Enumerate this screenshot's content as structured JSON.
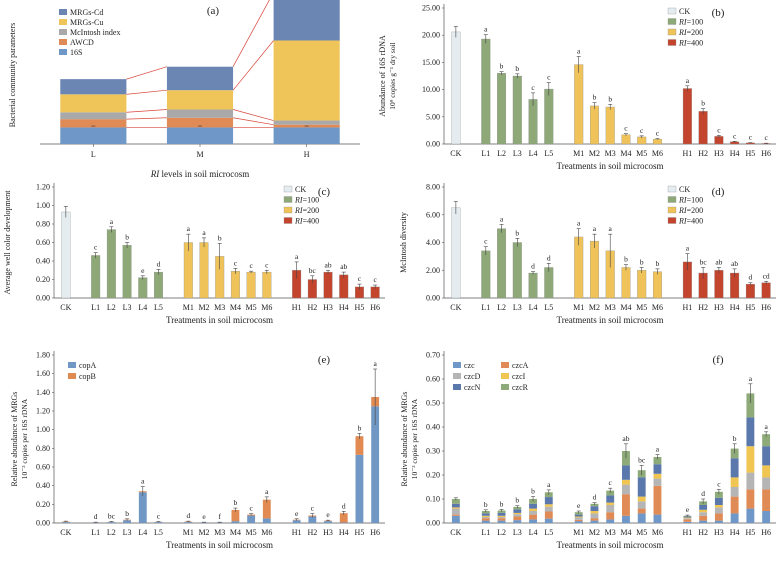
{
  "colors": {
    "ck": "#e4ecf0",
    "ri100": "#8ea878",
    "ri200": "#efc35a",
    "ri400": "#c4452e",
    "mrgs_cd": "#6c86b4",
    "mrgs_cu": "#efc55a",
    "mcintosh": "#a9a9a9",
    "awcd": "#e08a55",
    "s16": "#6f97c8",
    "copA": "#7197c4",
    "copB": "#e18a52",
    "czc": "#6f97c8",
    "czcA": "#e08a55",
    "czcD": "#b5b5b5",
    "czcI": "#f0c552",
    "czcN": "#5b78ad",
    "czcR": "#8eaa78"
  },
  "chart_data": [
    {
      "id": "a",
      "panel_label": "(a)",
      "type": "bar",
      "stacked": true,
      "ylabel": "Bacterial community parameters",
      "xlabel": "RI levels in soil microcosm",
      "categories": [
        "L",
        "M",
        "H"
      ],
      "legend": [
        "MRGs-Cd",
        "MRGs-Cu",
        "McIntosh index",
        "AWCD",
        "16S"
      ],
      "series": [
        {
          "name": "16S",
          "values": [
            0.12,
            0.12,
            0.12
          ]
        },
        {
          "name": "AWCD",
          "values": [
            0.06,
            0.07,
            0.02
          ]
        },
        {
          "name": "McIntosh index",
          "values": [
            0.05,
            0.06,
            0.03
          ]
        },
        {
          "name": "MRGs-Cu",
          "values": [
            0.13,
            0.14,
            0.58
          ]
        },
        {
          "name": "MRGs-Cd",
          "values": [
            0.11,
            0.17,
            0.35
          ]
        }
      ]
    },
    {
      "id": "b",
      "panel_label": "(b)",
      "type": "bar",
      "ylabel_line1": "Abundance of 16S rDNA",
      "ylabel_line2": "10⁹ copies g⁻¹ dry soil",
      "xlabel": "Treatments in soil microcosm",
      "yticks": [
        "0.00",
        "5.00",
        "10.00",
        "15.00",
        "20.00",
        "25.00"
      ],
      "ylim": [
        0,
        25
      ],
      "legend": [
        "CK",
        "RI=100",
        "RI=200",
        "RI=400"
      ],
      "groups": [
        {
          "series": "CK",
          "labels": [
            "CK"
          ],
          "values": [
            20.6
          ],
          "errors": [
            1.0
          ],
          "letters": [
            ""
          ]
        },
        {
          "series": "RI=100",
          "labels": [
            "L1",
            "L2",
            "L3",
            "L4",
            "L5"
          ],
          "values": [
            19.3,
            13.0,
            12.5,
            8.2,
            10.1
          ],
          "errors": [
            0.8,
            0.3,
            0.4,
            1.2,
            1.2
          ],
          "letters": [
            "a",
            "b",
            "b",
            "c",
            "c"
          ]
        },
        {
          "series": "RI=200",
          "labels": [
            "M1",
            "M2",
            "M3",
            "M4",
            "M5",
            "M6"
          ],
          "values": [
            14.6,
            7.0,
            6.8,
            1.7,
            1.3,
            0.9
          ],
          "errors": [
            1.5,
            0.6,
            0.5,
            0.2,
            0.2,
            0.1
          ],
          "letters": [
            "a",
            "b",
            "b",
            "c",
            "c",
            "c"
          ]
        },
        {
          "series": "RI=400",
          "labels": [
            "H1",
            "H2",
            "H3",
            "H4",
            "H5",
            "H6"
          ],
          "values": [
            10.2,
            6.0,
            1.4,
            0.4,
            0.2,
            0.1
          ],
          "errors": [
            0.5,
            0.5,
            0.2,
            0.1,
            0.05,
            0.05
          ],
          "letters": [
            "a",
            "b",
            "c",
            "c",
            "c",
            "c"
          ]
        }
      ]
    },
    {
      "id": "c",
      "panel_label": "(c)",
      "type": "bar",
      "ylabel": "Average well color development",
      "xlabel": "Treatments in soil microcosm",
      "yticks": [
        "0.00",
        "0.20",
        "0.40",
        "0.60",
        "0.80",
        "1.00",
        "1.20"
      ],
      "ylim": [
        0,
        1.2
      ],
      "legend": [
        "CK",
        "RI=100",
        "RI=200",
        "RI=400"
      ],
      "groups": [
        {
          "series": "CK",
          "labels": [
            "CK"
          ],
          "values": [
            0.93
          ],
          "errors": [
            0.06
          ],
          "letters": [
            ""
          ]
        },
        {
          "series": "RI=100",
          "labels": [
            "L1",
            "L2",
            "L3",
            "L4",
            "L5"
          ],
          "values": [
            0.46,
            0.74,
            0.57,
            0.22,
            0.28
          ],
          "errors": [
            0.03,
            0.03,
            0.03,
            0.02,
            0.03
          ],
          "letters": [
            "c",
            "a",
            "b",
            "e",
            "d"
          ]
        },
        {
          "series": "RI=200",
          "labels": [
            "M1",
            "M2",
            "M3",
            "M4",
            "M5",
            "M6"
          ],
          "values": [
            0.6,
            0.6,
            0.45,
            0.29,
            0.28,
            0.28
          ],
          "errors": [
            0.09,
            0.05,
            0.14,
            0.03,
            0.01,
            0.02
          ],
          "letters": [
            "a",
            "a",
            "b",
            "c",
            "c",
            "c"
          ]
        },
        {
          "series": "RI=400",
          "labels": [
            "H1",
            "H2",
            "H3",
            "H4",
            "H5",
            "H6"
          ],
          "values": [
            0.3,
            0.2,
            0.28,
            0.25,
            0.12,
            0.12
          ],
          "errors": [
            0.09,
            0.04,
            0.02,
            0.03,
            0.03,
            0.02
          ],
          "letters": [
            "a",
            "bc",
            "ab",
            "ab",
            "c",
            "c"
          ]
        }
      ]
    },
    {
      "id": "d",
      "panel_label": "(d)",
      "type": "bar",
      "ylabel": "McIntosh diversity",
      "xlabel": "Treatments in soil microcosm",
      "yticks": [
        "0.00",
        "2.00",
        "4.00",
        "6.00",
        "8.00"
      ],
      "ylim": [
        0,
        8
      ],
      "legend": [
        "CK",
        "RI=100",
        "RI=200",
        "RI=400"
      ],
      "groups": [
        {
          "series": "CK",
          "labels": [
            "CK"
          ],
          "values": [
            6.5
          ],
          "errors": [
            0.45
          ],
          "letters": [
            ""
          ]
        },
        {
          "series": "RI=100",
          "labels": [
            "L1",
            "L2",
            "L3",
            "L4",
            "L5"
          ],
          "values": [
            3.4,
            5.0,
            4.0,
            1.8,
            2.2
          ],
          "errors": [
            0.3,
            0.3,
            0.3,
            0.1,
            0.3
          ],
          "letters": [
            "c",
            "a",
            "b",
            "d",
            "d"
          ]
        },
        {
          "series": "RI=200",
          "labels": [
            "M1",
            "M2",
            "M3",
            "M4",
            "M5",
            "M6"
          ],
          "values": [
            4.4,
            4.1,
            3.4,
            2.2,
            2.0,
            1.9
          ],
          "errors": [
            0.6,
            0.5,
            1.2,
            0.2,
            0.2,
            0.2
          ],
          "letters": [
            "a",
            "a",
            "a",
            "b",
            "b",
            "b"
          ]
        },
        {
          "series": "RI=400",
          "labels": [
            "H1",
            "H2",
            "H3",
            "H4",
            "H5",
            "H6"
          ],
          "values": [
            2.6,
            1.8,
            2.0,
            1.8,
            1.0,
            1.1
          ],
          "errors": [
            0.6,
            0.4,
            0.2,
            0.3,
            0.1,
            0.1
          ],
          "letters": [
            "a",
            "bc",
            "ab",
            "ab",
            "d",
            "cd"
          ]
        }
      ]
    },
    {
      "id": "e",
      "panel_label": "(e)",
      "type": "bar",
      "stacked": true,
      "ylabel_line1": "Relative abundance of MRGs",
      "ylabel_line2": "10⁻³ copies per 16S rDNA",
      "xlabel": "Treatments in soil microcosm",
      "yticks": [
        "0.00",
        "0.20",
        "0.40",
        "0.60",
        "0.80",
        "1.00",
        "1.20",
        "1.40",
        "1.60",
        "1.80"
      ],
      "ylim": [
        0,
        1.8
      ],
      "legend": [
        "copA",
        "copB"
      ],
      "groups": [
        {
          "labels": [
            "CK"
          ],
          "letters": [
            ""
          ]
        },
        {
          "labels": [
            "L1",
            "L2",
            "L3",
            "L4",
            "L5"
          ],
          "letters": [
            "d",
            "bc",
            "b",
            "a",
            "c"
          ]
        },
        {
          "labels": [
            "M1",
            "M2",
            "M3",
            "M4",
            "M5",
            "M6"
          ],
          "letters": [
            "d",
            "e",
            "f",
            "b",
            "c",
            "a"
          ]
        },
        {
          "labels": [
            "H1",
            "H2",
            "H3",
            "H4",
            "H5",
            "H6"
          ],
          "letters": [
            "e",
            "c",
            "e",
            "d",
            "b",
            "a"
          ]
        }
      ],
      "series": [
        {
          "name": "copA",
          "values": [
            0.01,
            0.005,
            0.01,
            0.03,
            0.33,
            0.01,
            0.01,
            0.005,
            0.005,
            0.02,
            0.08,
            0.05,
            0.03,
            0.07,
            0.02,
            0.005,
            0.73,
            1.25
          ]
        },
        {
          "name": "copB",
          "values": [
            0.005,
            0.002,
            0.002,
            0.005,
            0.01,
            0.002,
            0.005,
            0.002,
            0.002,
            0.12,
            0.01,
            0.2,
            0.005,
            0.01,
            0.005,
            0.1,
            0.2,
            0.1
          ]
        }
      ],
      "errors": [
        0.005,
        0.002,
        0.005,
        0.01,
        0.05,
        0.005,
        0.005,
        0.002,
        0.002,
        0.02,
        0.01,
        0.03,
        0.01,
        0.02,
        0.005,
        0.02,
        0.03,
        0.3
      ]
    },
    {
      "id": "f",
      "panel_label": "(f)",
      "type": "bar",
      "stacked": true,
      "ylabel_line1": "Relative abundance of MRGs",
      "ylabel_line2": "10⁻³ copies per 16S rDNA",
      "xlabel": "Treatments in soil microcosm",
      "yticks": [
        "0.00",
        "0.10",
        "0.20",
        "0.30",
        "0.40",
        "0.50",
        "0.60",
        "0.70"
      ],
      "ylim": [
        0,
        0.7
      ],
      "legend": [
        "czc",
        "czcA",
        "czcD",
        "czcI",
        "czcN",
        "czcR"
      ],
      "groups": [
        {
          "labels": [
            "CK"
          ],
          "letters": [
            ""
          ]
        },
        {
          "labels": [
            "L1",
            "L2",
            "L3",
            "L4",
            "L5"
          ],
          "letters": [
            "b",
            "b",
            "b",
            "b",
            "a"
          ]
        },
        {
          "labels": [
            "M1",
            "M2",
            "M3",
            "M4",
            "M5",
            "M6"
          ],
          "letters": [
            "e",
            "d",
            "c",
            "ab",
            "bc",
            "a"
          ]
        },
        {
          "labels": [
            "H1",
            "H2",
            "H3",
            "H4",
            "H5",
            "H6"
          ],
          "letters": [
            "e",
            "d",
            "c",
            "b",
            "a",
            "a"
          ]
        }
      ],
      "series": [
        {
          "name": "czc",
          "values": [
            0.03,
            0.01,
            0.01,
            0.012,
            0.015,
            0.018,
            0.008,
            0.01,
            0.015,
            0.03,
            0.04,
            0.035,
            0.005,
            0.01,
            0.01,
            0.04,
            0.06,
            0.05
          ]
        },
        {
          "name": "czcA",
          "values": [
            0.005,
            0.01,
            0.01,
            0.015,
            0.02,
            0.03,
            0.005,
            0.01,
            0.03,
            0.09,
            0.02,
            0.12,
            0.01,
            0.02,
            0.03,
            0.07,
            0.08,
            0.09
          ]
        },
        {
          "name": "czcD",
          "values": [
            0.025,
            0.005,
            0.005,
            0.01,
            0.015,
            0.02,
            0.01,
            0.02,
            0.03,
            0.04,
            0.03,
            0.03,
            0.005,
            0.015,
            0.025,
            0.04,
            0.07,
            0.05
          ]
        },
        {
          "name": "czcI",
          "values": [
            0.005,
            0.005,
            0.005,
            0.005,
            0.01,
            0.01,
            0.004,
            0.01,
            0.01,
            0.02,
            0.02,
            0.02,
            0.003,
            0.01,
            0.01,
            0.04,
            0.11,
            0.05
          ]
        },
        {
          "name": "czcN",
          "values": [
            0.015,
            0.01,
            0.012,
            0.015,
            0.02,
            0.03,
            0.008,
            0.02,
            0.03,
            0.06,
            0.08,
            0.04,
            0.005,
            0.02,
            0.03,
            0.08,
            0.12,
            0.08
          ]
        },
        {
          "name": "czcR",
          "values": [
            0.02,
            0.01,
            0.01,
            0.01,
            0.02,
            0.02,
            0.01,
            0.01,
            0.02,
            0.06,
            0.03,
            0.03,
            0.002,
            0.015,
            0.025,
            0.04,
            0.1,
            0.05
          ]
        }
      ],
      "errors": [
        0.005,
        0.005,
        0.005,
        0.005,
        0.01,
        0.01,
        0.005,
        0.005,
        0.01,
        0.03,
        0.02,
        0.01,
        0.003,
        0.01,
        0.01,
        0.02,
        0.04,
        0.01
      ]
    }
  ]
}
